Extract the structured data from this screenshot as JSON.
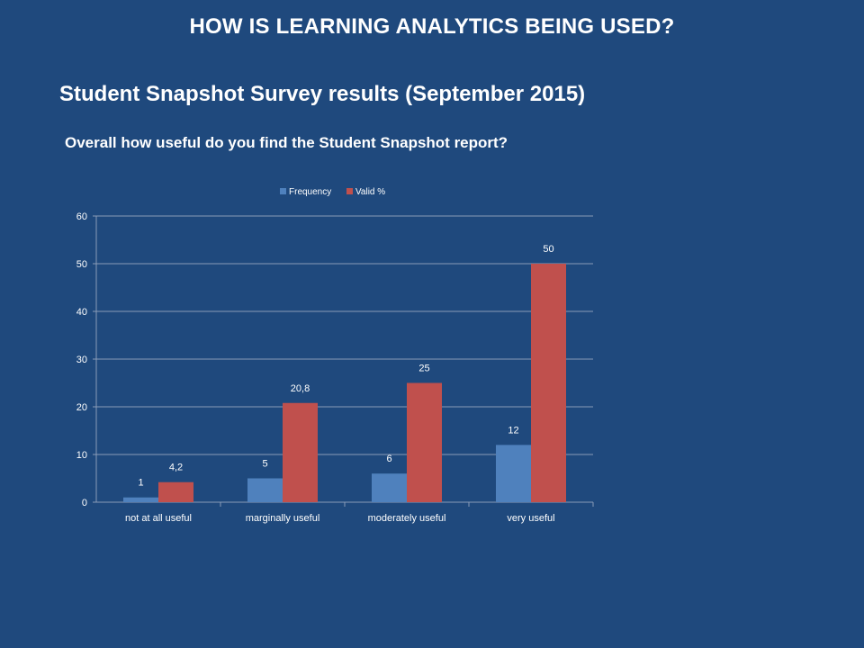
{
  "slide": {
    "title": "HOW IS LEARNING ANALYTICS BEING USED?",
    "subtitle": "Student Snapshot Survey results (September 2015)",
    "question": "Overall how useful do you find the Student Snapshot report?"
  },
  "chart_data": {
    "type": "bar",
    "categories": [
      "not at all useful",
      "marginally useful",
      "moderately useful",
      "very useful"
    ],
    "series": [
      {
        "name": "Frequency",
        "values": [
          1,
          5,
          6,
          12
        ],
        "labels": [
          "1",
          "5",
          "6",
          "12"
        ],
        "color": "#4f81bd"
      },
      {
        "name": "Valid %",
        "values": [
          4.2,
          20.8,
          25,
          50
        ],
        "labels": [
          "4,2",
          "20,8",
          "25",
          "50"
        ],
        "color": "#c0504d"
      }
    ],
    "ylim": [
      0,
      60
    ],
    "yticks": [
      0,
      10,
      20,
      30,
      40,
      50,
      60
    ],
    "grid": true,
    "legend": "top"
  }
}
